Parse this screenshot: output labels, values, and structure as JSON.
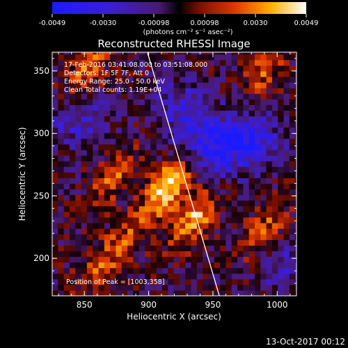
{
  "chart_data": {
    "type": "heatmap",
    "title": "Reconstructed RHESSI Image",
    "xlabel": "Heliocentric X (arcsec)",
    "ylabel": "Heliocentric Y (arcsec)",
    "xlim": [
      825,
      1015
    ],
    "ylim": [
      170,
      365
    ],
    "x_ticks": [
      850,
      900,
      950,
      1000
    ],
    "y_ticks": [
      200,
      250,
      300,
      350
    ],
    "colorbar": {
      "ticks": [
        "-0.0049",
        "-0.0030",
        "-0.00098",
        "0.00098",
        "0.0030",
        "0.0049"
      ],
      "min": -0.0049,
      "max": 0.0049,
      "unit": "(photons cm⁻² s⁻¹ asec⁻²)"
    },
    "annotations": {
      "time_range": "17-Feb-2016 03:41:08.000 to 03:51:08.000",
      "detectors": "Detectors: 1F 5F 7F, Att 0",
      "energy": "Energy Range: 25.0 - 50.0 keV",
      "clean": "Clean     Total counts: 1.19E+04",
      "peak": "Position of Peak = [1003,358]"
    },
    "limb_line": {
      "x": [
        899,
        955
      ],
      "y": [
        365,
        170
      ]
    },
    "sources": [
      {
        "x": 915,
        "y": 258,
        "amp": 1.0
      },
      {
        "x": 935,
        "y": 232,
        "amp": 0.75
      },
      {
        "x": 873,
        "y": 265,
        "amp": 0.5
      },
      {
        "x": 852,
        "y": 352,
        "amp": 0.55
      },
      {
        "x": 990,
        "y": 350,
        "amp": 0.45
      },
      {
        "x": 990,
        "y": 222,
        "amp": 0.5
      },
      {
        "x": 862,
        "y": 195,
        "amp": 0.4
      },
      {
        "x": 885,
        "y": 218,
        "amp": 0.35
      }
    ],
    "negative_regions": [
      {
        "x": 950,
        "y": 290,
        "amp": 0.7
      },
      {
        "x": 980,
        "y": 295,
        "amp": 0.6
      },
      {
        "x": 925,
        "y": 320,
        "amp": 0.45
      },
      {
        "x": 845,
        "y": 310,
        "amp": 0.4
      },
      {
        "x": 1005,
        "y": 195,
        "amp": 0.35
      }
    ]
  },
  "footer": {
    "timestamp": "13-Oct-2017 00:12"
  }
}
